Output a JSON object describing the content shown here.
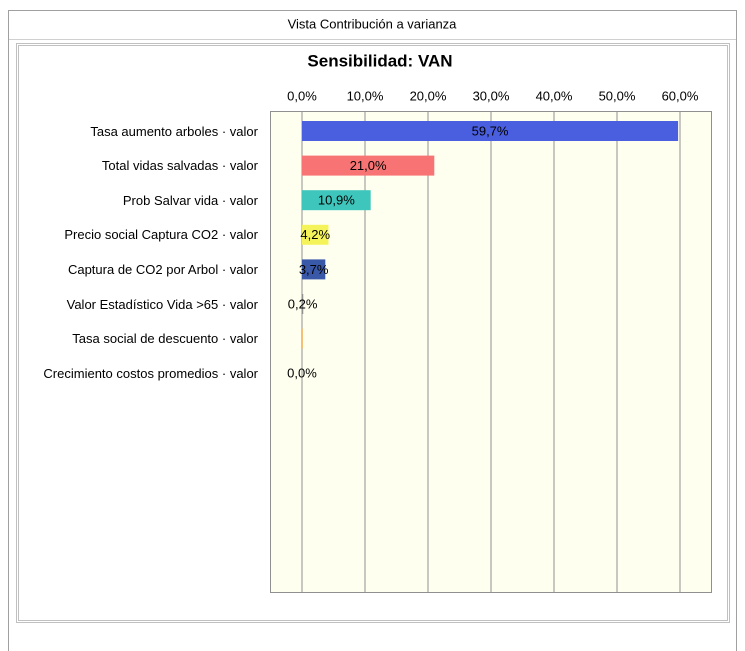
{
  "window_title": "Vista Contribución a varianza",
  "chart_data": {
    "type": "barh",
    "title": "Sensibilidad: VAN",
    "categories": [
      "Tasa aumento arboles · valor",
      "Total vidas salvadas · valor",
      "Prob Salvar vida · valor",
      "Precio social Captura CO2 · valor",
      "Captura de CO2 por Arbol · valor",
      "Valor Estadístico Vida >65 · valor",
      "Tasa social de descuento · valor",
      "Crecimiento costos promedios · valor"
    ],
    "values": [
      59.7,
      21.0,
      10.9,
      4.2,
      3.7,
      0.2,
      0.1,
      0.0
    ],
    "value_labels": [
      "59,7%",
      "21,0%",
      "10,9%",
      "4,2%",
      "3,7%",
      "0,2%",
      null,
      "0,0%"
    ],
    "colors": [
      "#4a5ee0",
      "#f87474",
      "#3ec6bc",
      "#f4f45a",
      "#3a58a8",
      "#909090",
      "#f09a30",
      "#909090"
    ],
    "xlim": [
      -5,
      65
    ],
    "xticks": [
      {
        "value": 0,
        "label": "0,0%"
      },
      {
        "value": 10,
        "label": "10,0%"
      },
      {
        "value": 20,
        "label": "20,0%"
      },
      {
        "value": 30,
        "label": "30,0%"
      },
      {
        "value": 40,
        "label": "40,0%"
      },
      {
        "value": 50,
        "label": "50,0%"
      },
      {
        "value": 60,
        "label": "60,0%"
      }
    ],
    "grid": true
  }
}
